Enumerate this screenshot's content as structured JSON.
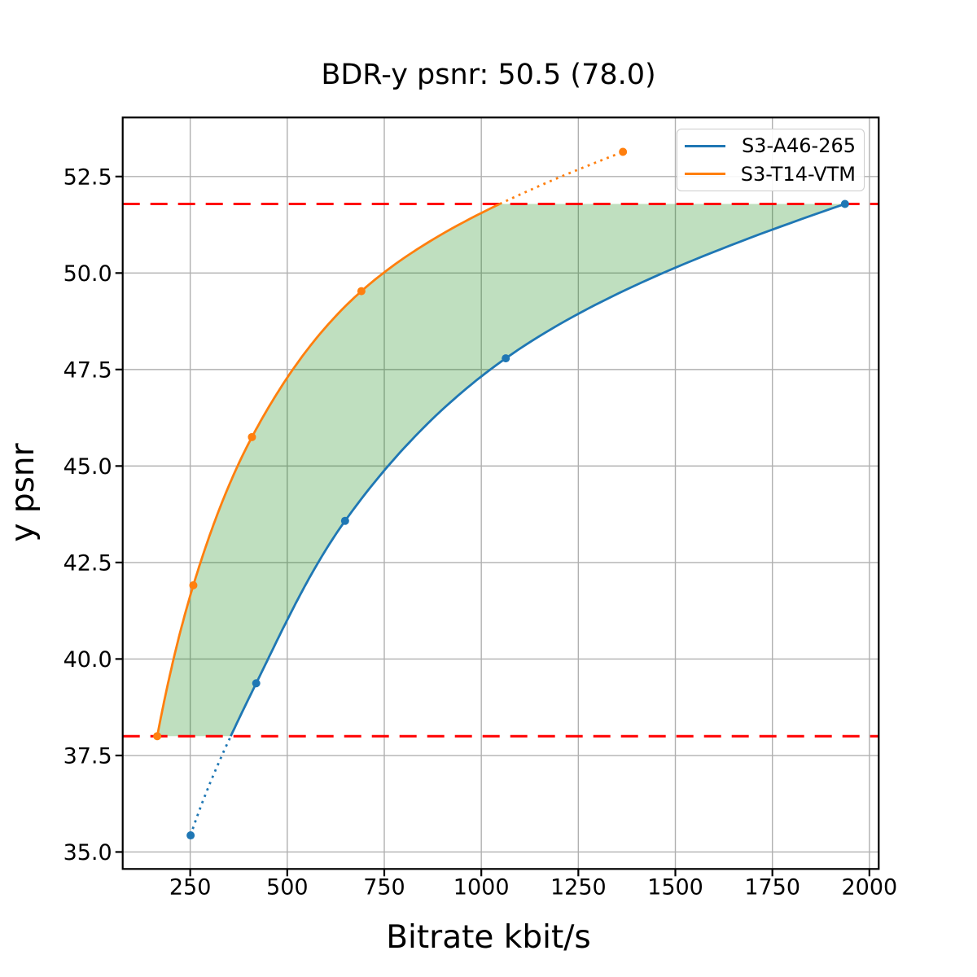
{
  "chart_data": {
    "type": "line",
    "title": "BDR-y psnr: 50.5 (78.0)",
    "xlabel": "Bitrate kbit/s",
    "ylabel": "y psnr",
    "xlim": [
      76,
      2024
    ],
    "ylim": [
      34.56,
      54.03
    ],
    "x_ticks": [
      250,
      500,
      750,
      1000,
      1250,
      1500,
      1750,
      2000
    ],
    "y_ticks": [
      35.0,
      37.5,
      40.0,
      42.5,
      45.0,
      47.5,
      50.0,
      52.5
    ],
    "grid": true,
    "grid_color": "#b0b0b0",
    "legend_position": "upper right",
    "series": [
      {
        "name": "S3-A46-265",
        "color": "#1f77b4",
        "points": [
          [
            251,
            35.43
          ],
          [
            420,
            39.37
          ],
          [
            649,
            43.58
          ],
          [
            1063,
            47.79
          ],
          [
            1937,
            51.79
          ]
        ]
      },
      {
        "name": "S3-T14-VTM",
        "color": "#ff7f0e",
        "points": [
          [
            165,
            38.0
          ],
          [
            258,
            41.91
          ],
          [
            409,
            45.75
          ],
          [
            691,
            49.53
          ],
          [
            1365,
            53.14
          ]
        ]
      }
    ],
    "overlap_low": 38.0,
    "overlap_high": 51.79,
    "hline_color": "#ff0000",
    "fill_color": "#008000",
    "fill_opacity": 0.25
  }
}
